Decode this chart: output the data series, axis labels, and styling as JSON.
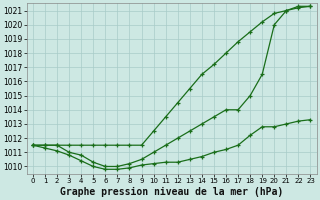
{
  "background_color": "#cde8e3",
  "grid_color": "#a8ccc8",
  "line_color": "#1a6e1a",
  "title": "Graphe pression niveau de la mer (hPa)",
  "title_fontsize": 7.0,
  "xlim": [
    -0.5,
    23.5
  ],
  "ylim": [
    1009.5,
    1021.5
  ],
  "ytick_vals": [
    1010,
    1011,
    1012,
    1013,
    1014,
    1015,
    1016,
    1017,
    1018,
    1019,
    1020,
    1021
  ],
  "xtick_vals": [
    0,
    1,
    2,
    3,
    4,
    5,
    6,
    7,
    8,
    9,
    10,
    11,
    12,
    13,
    14,
    15,
    16,
    17,
    18,
    19,
    20,
    21,
    22,
    23
  ],
  "line1_x": [
    0,
    1,
    2,
    3,
    4,
    5,
    6,
    7,
    8,
    9,
    10,
    11,
    12,
    13,
    14,
    15,
    16,
    17,
    18,
    19,
    20,
    21,
    22,
    23
  ],
  "line1_y": [
    1011.5,
    1011.5,
    1011.5,
    1011.5,
    1011.5,
    1011.5,
    1011.5,
    1011.5,
    1011.5,
    1011.5,
    1012.5,
    1013.5,
    1014.5,
    1015.5,
    1016.5,
    1017.2,
    1018.0,
    1018.8,
    1019.5,
    1020.2,
    1020.8,
    1021.0,
    1021.2,
    1021.3
  ],
  "line2_x": [
    0,
    1,
    2,
    3,
    4,
    5,
    6,
    7,
    8,
    9,
    10,
    11,
    12,
    13,
    14,
    15,
    16,
    17,
    18,
    19,
    20,
    21,
    22,
    23
  ],
  "line2_y": [
    1011.5,
    1011.5,
    1011.5,
    1011.0,
    1010.8,
    1010.3,
    1010.0,
    1010.0,
    1010.2,
    1010.5,
    1011.0,
    1011.5,
    1012.0,
    1012.5,
    1013.0,
    1013.5,
    1014.0,
    1014.0,
    1015.0,
    1016.5,
    1020.0,
    1021.0,
    1021.3,
    1021.3
  ],
  "line3_x": [
    0,
    1,
    2,
    3,
    4,
    5,
    6,
    7,
    8,
    9,
    10,
    11,
    12,
    13,
    14,
    15,
    16,
    17,
    18,
    19,
    20,
    21,
    22,
    23
  ],
  "line3_y": [
    1011.5,
    1011.3,
    1011.1,
    1010.8,
    1010.4,
    1010.0,
    1009.8,
    1009.8,
    1009.9,
    1010.1,
    1010.2,
    1010.3,
    1010.3,
    1010.5,
    1010.7,
    1011.0,
    1011.2,
    1011.5,
    1012.2,
    1012.8,
    1012.8,
    1013.0,
    1013.2,
    1013.3
  ]
}
